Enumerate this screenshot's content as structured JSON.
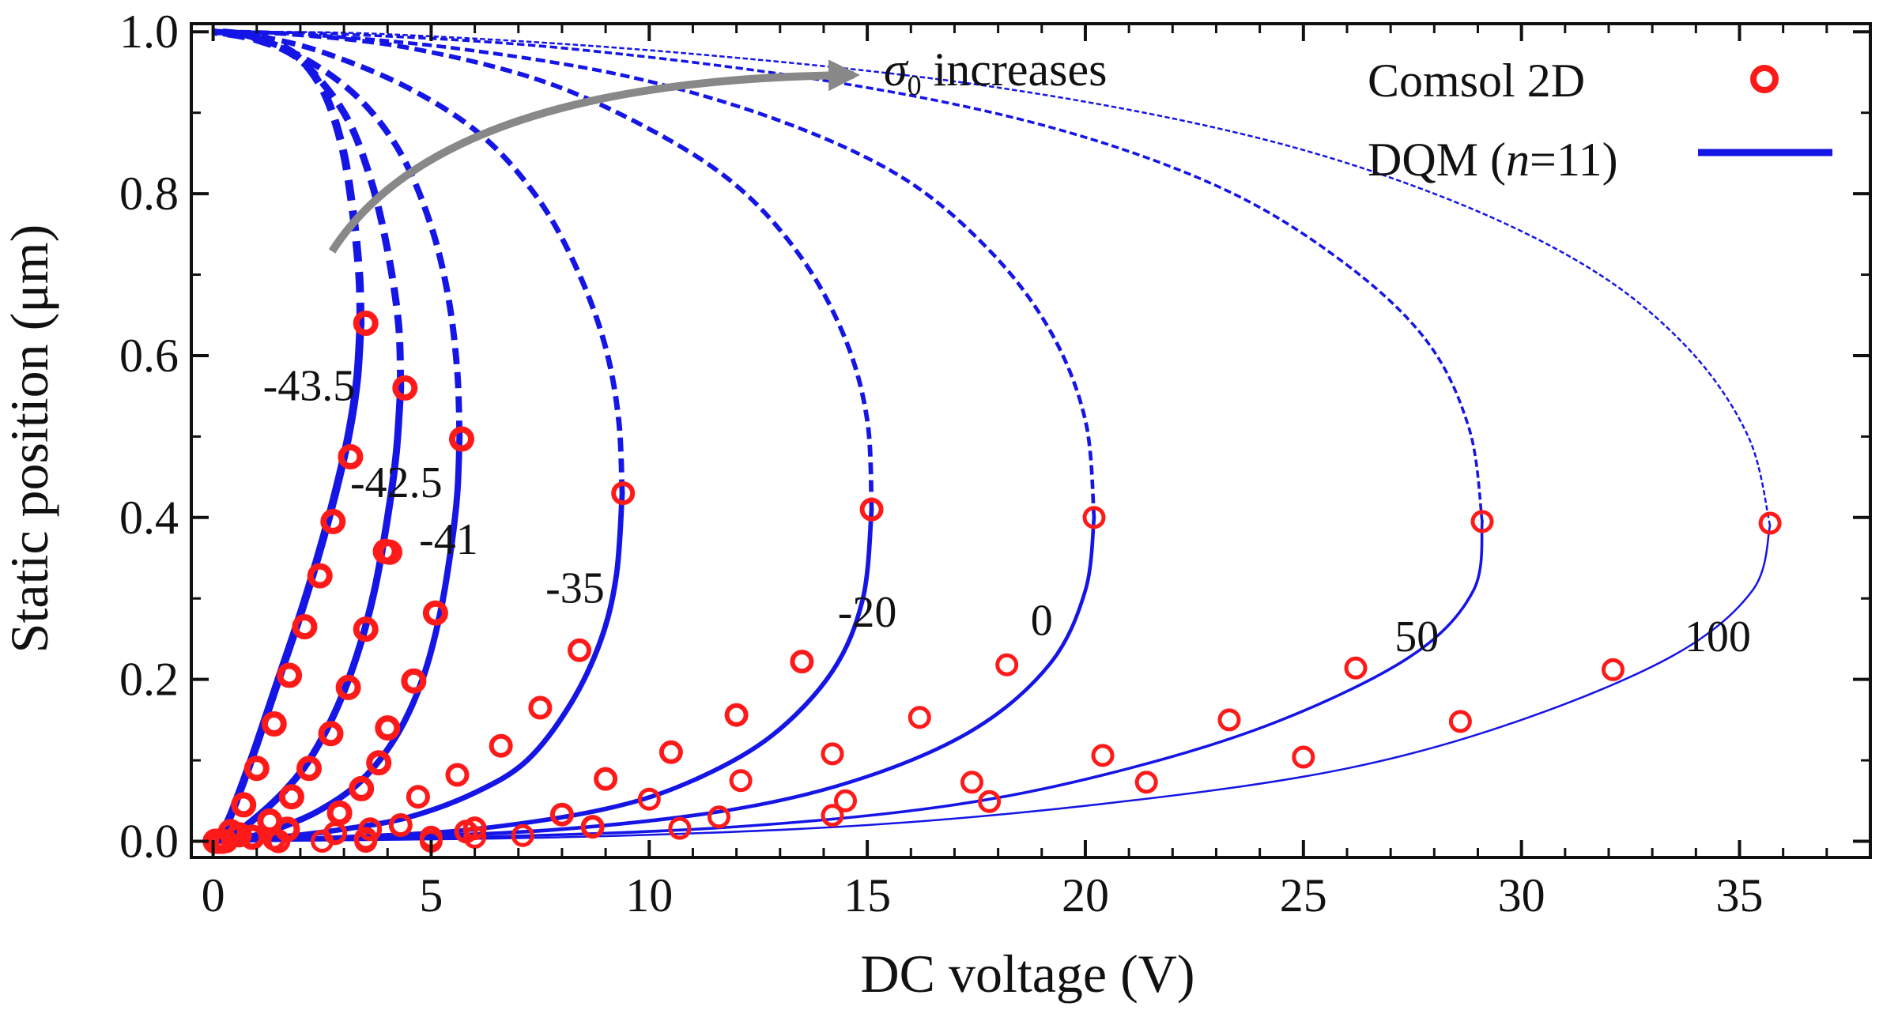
{
  "chart_data": {
    "type": "line",
    "title": "",
    "xlabel": "DC voltage (V)",
    "ylabel": "Static position (μm)",
    "xlim": [
      -0.5,
      38
    ],
    "ylim": [
      -0.02,
      1.01
    ],
    "xticks": [
      0,
      5,
      10,
      15,
      20,
      25,
      30,
      35
    ],
    "xtick_labels": [
      "0",
      "5",
      "10",
      "15",
      "20",
      "25",
      "30",
      "35"
    ],
    "yticks": [
      0.0,
      0.2,
      0.4,
      0.6,
      0.8,
      1.0
    ],
    "ytick_labels": [
      "0.0",
      "0.2",
      "0.4",
      "0.6",
      "0.8",
      "1.0"
    ],
    "grid": false,
    "legend": {
      "position": "top-right",
      "entries": [
        {
          "label": "Comsol 2D",
          "marker": "open-circle",
          "color": "#ff1a1a"
        },
        {
          "label_parts": [
            "DQM (",
            "n",
            "=11)"
          ],
          "marker": "solid-line",
          "color": "#1515e6"
        }
      ]
    },
    "annotation": {
      "symbol": "σ",
      "subscript": "0",
      "text": " increases"
    },
    "colors": {
      "model": "#1515e6",
      "comsol": "#ff1a1a",
      "arrow": "#888888"
    },
    "series": [
      {
        "name": "-43.5",
        "label": "-43.5",
        "stable": [
          [
            0,
            0
          ],
          [
            0.3,
            0.02
          ],
          [
            0.6,
            0.06
          ],
          [
            1.0,
            0.12
          ],
          [
            1.5,
            0.2
          ],
          [
            2.0,
            0.28
          ],
          [
            2.45,
            0.36
          ],
          [
            2.8,
            0.43
          ],
          [
            3.1,
            0.5
          ],
          [
            3.3,
            0.57
          ],
          [
            3.38,
            0.64
          ]
        ],
        "unstable": [
          [
            3.38,
            0.64
          ],
          [
            3.35,
            0.7
          ],
          [
            3.2,
            0.78
          ],
          [
            2.95,
            0.86
          ],
          [
            2.5,
            0.93
          ],
          [
            1.8,
            0.975
          ],
          [
            0.8,
            0.995
          ],
          [
            0,
            1.0
          ]
        ],
        "comsol": [
          [
            0.05,
            0.0
          ],
          [
            0.4,
            0.012
          ],
          [
            0.7,
            0.045
          ],
          [
            1.0,
            0.09
          ],
          [
            1.4,
            0.145
          ],
          [
            1.75,
            0.205
          ],
          [
            2.1,
            0.265
          ],
          [
            2.45,
            0.328
          ],
          [
            2.75,
            0.395
          ],
          [
            3.15,
            0.475
          ],
          [
            3.5,
            0.64
          ]
        ]
      },
      {
        "name": "-42.5",
        "label": "-42.5",
        "stable": [
          [
            0,
            0
          ],
          [
            0.5,
            0.01
          ],
          [
            1.0,
            0.03
          ],
          [
            1.6,
            0.06
          ],
          [
            2.2,
            0.1
          ],
          [
            2.8,
            0.16
          ],
          [
            3.3,
            0.23
          ],
          [
            3.7,
            0.31
          ],
          [
            4.0,
            0.4
          ],
          [
            4.2,
            0.48
          ],
          [
            4.3,
            0.56
          ]
        ],
        "unstable": [
          [
            4.3,
            0.56
          ],
          [
            4.25,
            0.64
          ],
          [
            4.0,
            0.73
          ],
          [
            3.6,
            0.82
          ],
          [
            3.0,
            0.9
          ],
          [
            2.0,
            0.965
          ],
          [
            1.0,
            0.99
          ],
          [
            0,
            1.0
          ]
        ],
        "comsol": [
          [
            0.1,
            0.0
          ],
          [
            0.6,
            0.008
          ],
          [
            1.3,
            0.025
          ],
          [
            1.8,
            0.055
          ],
          [
            2.2,
            0.09
          ],
          [
            2.7,
            0.133
          ],
          [
            3.1,
            0.19
          ],
          [
            3.5,
            0.262
          ],
          [
            3.95,
            0.358
          ],
          [
            4.4,
            0.56
          ]
        ]
      },
      {
        "name": "-41",
        "label": "-41",
        "stable": [
          [
            0,
            0
          ],
          [
            0.8,
            0.005
          ],
          [
            1.6,
            0.018
          ],
          [
            2.5,
            0.04
          ],
          [
            3.4,
            0.075
          ],
          [
            4.2,
            0.13
          ],
          [
            4.8,
            0.2
          ],
          [
            5.2,
            0.28
          ],
          [
            5.45,
            0.36
          ],
          [
            5.6,
            0.43
          ],
          [
            5.65,
            0.5
          ]
        ],
        "unstable": [
          [
            5.65,
            0.5
          ],
          [
            5.6,
            0.58
          ],
          [
            5.4,
            0.67
          ],
          [
            5.0,
            0.76
          ],
          [
            4.3,
            0.85
          ],
          [
            3.3,
            0.92
          ],
          [
            2.0,
            0.97
          ],
          [
            0.8,
            0.995
          ],
          [
            0,
            1.0
          ]
        ],
        "comsol": [
          [
            0.2,
            0.0
          ],
          [
            0.9,
            0.005
          ],
          [
            1.7,
            0.015
          ],
          [
            2.9,
            0.035
          ],
          [
            3.4,
            0.065
          ],
          [
            3.8,
            0.097
          ],
          [
            4.0,
            0.14
          ],
          [
            4.6,
            0.198
          ],
          [
            5.1,
            0.282
          ],
          [
            4.05,
            0.357
          ],
          [
            5.7,
            0.497
          ]
        ]
      },
      {
        "name": "-35",
        "label": "-35",
        "stable": [
          [
            0,
            0
          ],
          [
            1.5,
            0.005
          ],
          [
            3.0,
            0.015
          ],
          [
            4.5,
            0.03
          ],
          [
            6.0,
            0.06
          ],
          [
            7.2,
            0.1
          ],
          [
            8.2,
            0.17
          ],
          [
            8.9,
            0.25
          ],
          [
            9.25,
            0.33
          ],
          [
            9.38,
            0.43
          ]
        ],
        "unstable": [
          [
            9.38,
            0.43
          ],
          [
            9.3,
            0.52
          ],
          [
            9.0,
            0.61
          ],
          [
            8.4,
            0.7
          ],
          [
            7.5,
            0.79
          ],
          [
            6.2,
            0.87
          ],
          [
            4.5,
            0.93
          ],
          [
            2.5,
            0.975
          ],
          [
            1.0,
            0.995
          ],
          [
            0,
            1.0
          ]
        ],
        "comsol": [
          [
            0.3,
            0.0
          ],
          [
            1.4,
            0.003
          ],
          [
            2.8,
            0.01
          ],
          [
            3.6,
            0.015
          ],
          [
            4.3,
            0.02
          ],
          [
            4.7,
            0.055
          ],
          [
            5.6,
            0.082
          ],
          [
            6.6,
            0.118
          ],
          [
            7.5,
            0.165
          ],
          [
            8.4,
            0.236
          ],
          [
            9.4,
            0.43
          ]
        ]
      },
      {
        "name": "-20",
        "label": "-20",
        "stable": [
          [
            0,
            0
          ],
          [
            3,
            0.005
          ],
          [
            6,
            0.015
          ],
          [
            9,
            0.04
          ],
          [
            11,
            0.075
          ],
          [
            12.8,
            0.13
          ],
          [
            14.2,
            0.21
          ],
          [
            14.9,
            0.3
          ],
          [
            15.1,
            0.41
          ]
        ],
        "unstable": [
          [
            15.1,
            0.41
          ],
          [
            15.0,
            0.52
          ],
          [
            14.5,
            0.62
          ],
          [
            13.5,
            0.72
          ],
          [
            12.0,
            0.81
          ],
          [
            10,
            0.88
          ],
          [
            7.5,
            0.94
          ],
          [
            4.5,
            0.98
          ],
          [
            1.8,
            0.997
          ],
          [
            0,
            1.0
          ]
        ],
        "comsol": [
          [
            1.5,
            0.0
          ],
          [
            3.5,
            0.003
          ],
          [
            5.8,
            0.012
          ],
          [
            8.0,
            0.033
          ],
          [
            9.0,
            0.077
          ],
          [
            10.5,
            0.11
          ],
          [
            12.0,
            0.156
          ],
          [
            13.5,
            0.222
          ],
          [
            15.1,
            0.41
          ],
          [
            6.0,
            0.016
          ],
          [
            8.7,
            0.018
          ]
        ]
      },
      {
        "name": "0",
        "label": "0",
        "stable": [
          [
            0,
            0
          ],
          [
            4,
            0.005
          ],
          [
            8,
            0.015
          ],
          [
            12,
            0.04
          ],
          [
            15,
            0.08
          ],
          [
            17.5,
            0.14
          ],
          [
            19.2,
            0.22
          ],
          [
            20.0,
            0.31
          ],
          [
            20.2,
            0.4
          ]
        ],
        "unstable": [
          [
            20.2,
            0.4
          ],
          [
            20.0,
            0.52
          ],
          [
            19.2,
            0.63
          ],
          [
            17.8,
            0.73
          ],
          [
            15.8,
            0.82
          ],
          [
            13,
            0.89
          ],
          [
            9.5,
            0.945
          ],
          [
            5.5,
            0.98
          ],
          [
            2,
            0.997
          ],
          [
            0,
            1.0
          ]
        ],
        "comsol": [
          [
            2.5,
            0.0
          ],
          [
            5.0,
            0.005
          ],
          [
            7.1,
            0.007
          ],
          [
            10.0,
            0.052
          ],
          [
            12.1,
            0.075
          ],
          [
            14.2,
            0.108
          ],
          [
            16.2,
            0.153
          ],
          [
            18.2,
            0.218
          ],
          [
            20.2,
            0.4
          ],
          [
            10.7,
            0.016
          ]
        ]
      },
      {
        "name": "50",
        "label": "50",
        "stable": [
          [
            0,
            0
          ],
          [
            6,
            0.005
          ],
          [
            12,
            0.018
          ],
          [
            17,
            0.045
          ],
          [
            21,
            0.09
          ],
          [
            24.5,
            0.15
          ],
          [
            27.5,
            0.23
          ],
          [
            28.9,
            0.31
          ],
          [
            29.1,
            0.395
          ]
        ],
        "unstable": [
          [
            29.1,
            0.395
          ],
          [
            28.8,
            0.51
          ],
          [
            27.8,
            0.62
          ],
          [
            25.8,
            0.72
          ],
          [
            23,
            0.81
          ],
          [
            19,
            0.885
          ],
          [
            14,
            0.94
          ],
          [
            8,
            0.98
          ],
          [
            3,
            0.997
          ],
          [
            0,
            1.0
          ]
        ],
        "comsol": [
          [
            3.5,
            0.0
          ],
          [
            6.0,
            0.005
          ],
          [
            11.6,
            0.03
          ],
          [
            14.5,
            0.05
          ],
          [
            17.4,
            0.073
          ],
          [
            20.4,
            0.106
          ],
          [
            23.3,
            0.15
          ],
          [
            26.2,
            0.214
          ],
          [
            29.1,
            0.395
          ]
        ]
      },
      {
        "name": "100",
        "label": "100",
        "stable": [
          [
            0,
            0
          ],
          [
            8,
            0.005
          ],
          [
            15,
            0.02
          ],
          [
            21,
            0.05
          ],
          [
            26,
            0.09
          ],
          [
            30,
            0.15
          ],
          [
            33.5,
            0.23
          ],
          [
            35.3,
            0.31
          ],
          [
            35.7,
            0.39
          ]
        ],
        "unstable": [
          [
            35.7,
            0.39
          ],
          [
            35.2,
            0.5
          ],
          [
            33.8,
            0.61
          ],
          [
            31.5,
            0.71
          ],
          [
            28,
            0.8
          ],
          [
            23.5,
            0.875
          ],
          [
            17.5,
            0.935
          ],
          [
            10.5,
            0.975
          ],
          [
            4,
            0.997
          ],
          [
            0,
            1.0
          ]
        ],
        "comsol": [
          [
            5.0,
            0.0
          ],
          [
            8.7,
            0.018
          ],
          [
            14.2,
            0.032
          ],
          [
            17.8,
            0.049
          ],
          [
            21.4,
            0.073
          ],
          [
            25.0,
            0.104
          ],
          [
            28.6,
            0.148
          ],
          [
            32.1,
            0.212
          ],
          [
            35.7,
            0.393
          ]
        ]
      }
    ],
    "curve_labels": [
      {
        "text": "-43.5",
        "x": 2.2,
        "y": 0.545
      },
      {
        "text": "-42.5",
        "x": 4.2,
        "y": 0.425
      },
      {
        "text": "-41",
        "x": 5.4,
        "y": 0.355
      },
      {
        "text": "-35",
        "x": 8.3,
        "y": 0.295
      },
      {
        "text": "-20",
        "x": 15.0,
        "y": 0.265
      },
      {
        "text": "0",
        "x": 19.0,
        "y": 0.255
      },
      {
        "text": "50",
        "x": 27.6,
        "y": 0.235
      },
      {
        "text": "100",
        "x": 34.5,
        "y": 0.235
      }
    ]
  }
}
